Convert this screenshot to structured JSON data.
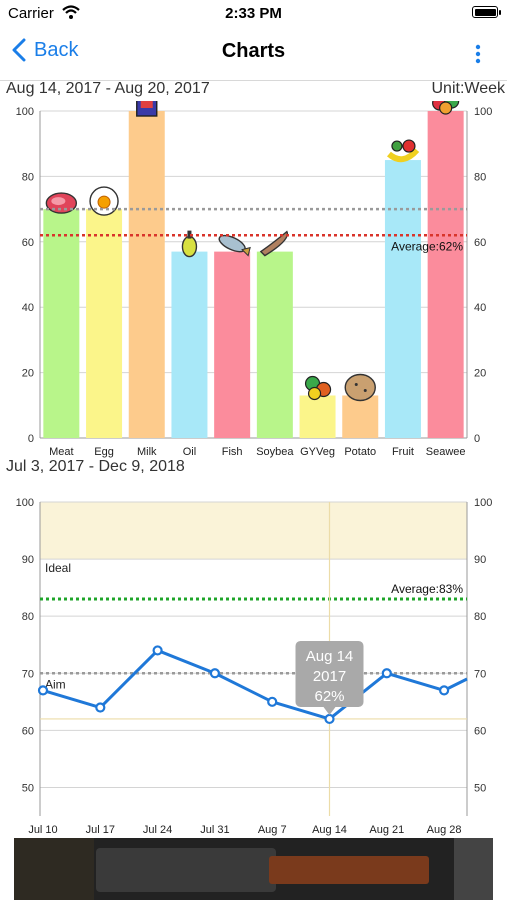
{
  "status": {
    "carrier": "Carrier",
    "time": "2:33 PM"
  },
  "nav": {
    "back_label": "Back",
    "title": "Charts"
  },
  "week": {
    "range": "Aug 14, 2017 - Aug 20, 2017",
    "unit": "Unit:Week"
  },
  "trend": {
    "range": "Jul 3, 2017 - Dec 9, 2018"
  },
  "chart_data": [
    {
      "type": "bar",
      "categories": [
        "Meat",
        "Egg",
        "Milk",
        "Oil",
        "Fish",
        "Soybea",
        "GYVeg",
        "Potato",
        "Fruit",
        "Seawee"
      ],
      "values": [
        70,
        70,
        100,
        57,
        57,
        57,
        13,
        13,
        85,
        100
      ],
      "colors": [
        "#b8f58a",
        "#fbf58a",
        "#fdcb8c",
        "#a8e8f8",
        "#fb8c9c",
        "#b8f58a",
        "#fbf58a",
        "#fdcb8c",
        "#a8e8f8",
        "#fb8c9c"
      ],
      "icons": [
        "meat-icon",
        "egg-icon",
        "milk-icon",
        "oil-icon",
        "fish-icon",
        "soybean-icon",
        "vegetable-icon",
        "potato-icon",
        "fruit-icon",
        "seaweed-icon"
      ],
      "ylim": [
        0,
        100
      ],
      "yticks": [
        0,
        20,
        40,
        60,
        80,
        100
      ],
      "target": 70,
      "average": 62,
      "average_label": "Average:62%",
      "grid": true
    },
    {
      "type": "line",
      "x": [
        "Jul 10",
        "Jul 17",
        "Jul 24",
        "Jul 31",
        "Aug 7",
        "Aug 14",
        "Aug 21",
        "Aug 28"
      ],
      "values": [
        67,
        64,
        74,
        70,
        65,
        62,
        70,
        67
      ],
      "end_value": 69,
      "ylim": [
        45,
        100
      ],
      "yticks": [
        50,
        60,
        70,
        80,
        90,
        100
      ],
      "ideal_band": [
        90,
        100
      ],
      "ideal_label": "Ideal",
      "aim": 70,
      "aim_label": "Aim",
      "average": 83,
      "average_label": "Average:83%",
      "selected_index": 5,
      "tooltip": [
        "Aug 14",
        "2017",
        "62%"
      ],
      "grid": true
    }
  ]
}
